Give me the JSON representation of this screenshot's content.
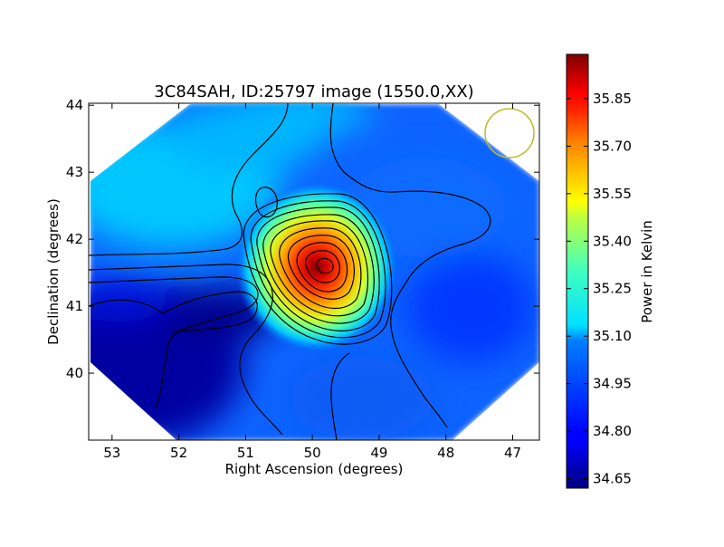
{
  "chart_data": {
    "type": "heatmap",
    "title": "3C84SAH, ID:25797 image (1550.0,XX)",
    "xlabel": "Right Ascension (degrees)",
    "ylabel": "Declination (degrees)",
    "xlim": [
      53.35,
      46.6
    ],
    "ylim": [
      39.0,
      44.03
    ],
    "x_ticks": [
      "53",
      "52",
      "51",
      "50",
      "49",
      "48",
      "47"
    ],
    "y_ticks": [
      "40",
      "41",
      "42",
      "43",
      "44"
    ],
    "x_tick_values": [
      53,
      52,
      51,
      50,
      49,
      48,
      47
    ],
    "y_tick_values": [
      40,
      41,
      42,
      43,
      44
    ],
    "colorbar": {
      "label": "Power in Kelvin",
      "range": [
        34.62,
        35.99
      ],
      "ticks": [
        "34.65",
        "34.80",
        "34.95",
        "35.10",
        "35.25",
        "35.40",
        "35.55",
        "35.70",
        "35.85"
      ],
      "tick_values": [
        34.65,
        34.8,
        34.95,
        35.1,
        35.25,
        35.4,
        35.55,
        35.7,
        35.85
      ],
      "colormap": "jet"
    },
    "peak": {
      "ra": 49.9,
      "dec": 41.52,
      "value": 35.95
    },
    "features": [
      {
        "kind": "hotspot",
        "ra": 49.85,
        "dec": 41.55,
        "value": 35.95
      },
      {
        "kind": "cold_region",
        "ra": 51.3,
        "dec": 40.9,
        "value": 34.65
      },
      {
        "kind": "cold_region",
        "ra": 53.0,
        "dec": 40.3,
        "value": 34.66
      },
      {
        "kind": "warm_region",
        "ra": 52.0,
        "dec": 42.3,
        "value": 35.03
      },
      {
        "kind": "warm_region",
        "ra": 50.0,
        "dec": 43.6,
        "value": 34.99
      }
    ],
    "beam_circle": {
      "ra": 47.05,
      "dec": 43.55,
      "color": "#bcbc2c"
    },
    "grid": false,
    "contours": true
  }
}
